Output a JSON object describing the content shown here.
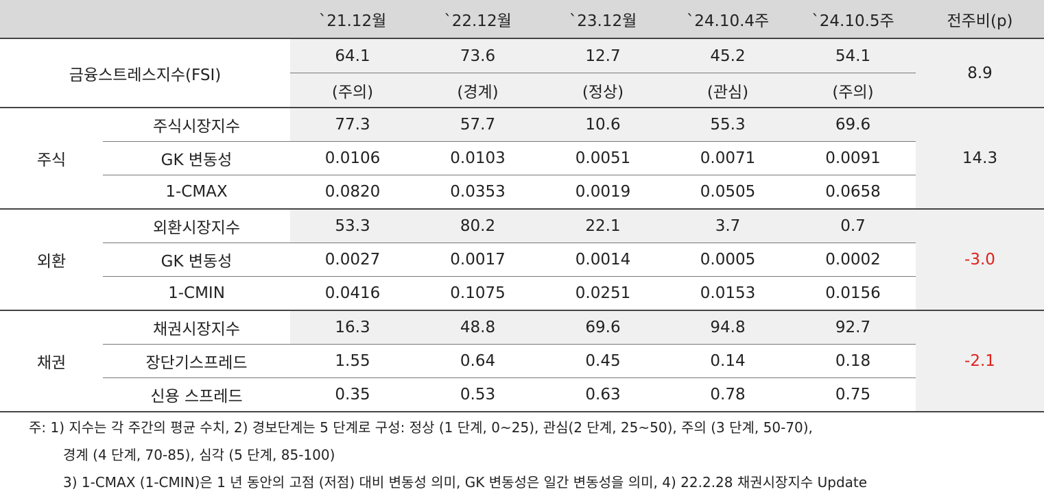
{
  "header": [
    "`21.12월",
    "`22.12월",
    "`23.12월",
    "`24.10.4주",
    "`24.10.5주",
    "전주비(p)"
  ],
  "fsi": {
    "label": "금융스트레스지수(FSI)",
    "values": [
      "64.1",
      "73.6",
      "12.7",
      "45.2",
      "54.1"
    ],
    "levels": [
      "(주의)",
      "(경계)",
      "(정상)",
      "(관심)",
      "(주의)"
    ],
    "change": "8.9"
  },
  "groups": [
    {
      "name": "주식",
      "change": "14.3",
      "rows": [
        {
          "label": "주식시장지수",
          "values": [
            "77.3",
            "57.7",
            "10.6",
            "55.3",
            "69.6"
          ]
        },
        {
          "label": "GK 변동성",
          "values": [
            "0.0106",
            "0.0103",
            "0.0051",
            "0.0071",
            "0.0091"
          ]
        },
        {
          "label": "1-CMAX",
          "values": [
            "0.0820",
            "0.0353",
            "0.0019",
            "0.0505",
            "0.0658"
          ]
        }
      ]
    },
    {
      "name": "외환",
      "change": "-3.0",
      "rows": [
        {
          "label": "외환시장지수",
          "values": [
            "53.3",
            "80.2",
            "22.1",
            "3.7",
            "0.7"
          ]
        },
        {
          "label": "GK 변동성",
          "values": [
            "0.0027",
            "0.0017",
            "0.0014",
            "0.0005",
            "0.0002"
          ]
        },
        {
          "label": "1-CMIN",
          "values": [
            "0.0416",
            "0.1075",
            "0.0251",
            "0.0153",
            "0.0156"
          ]
        }
      ]
    },
    {
      "name": "채권",
      "change": "-2.1",
      "rows": [
        {
          "label": "채권시장지수",
          "values": [
            "16.3",
            "48.8",
            "69.6",
            "94.8",
            "92.7"
          ]
        },
        {
          "label": "장단기스프레드",
          "values": [
            "1.55",
            "0.64",
            "0.45",
            "0.14",
            "0.18"
          ]
        },
        {
          "label": "신용 스프레드",
          "values": [
            "0.35",
            "0.53",
            "0.63",
            "0.78",
            "0.75"
          ]
        }
      ]
    }
  ],
  "notes": [
    "주: 1) 지수는 각 주간의 평균 수치, 2) 경보단계는 5 단계로 구성: 정상 (1 단계, 0~25), 관심(2 단계, 25~50), 주의 (3 단계, 50-70),",
    "경계 (4 단계, 70-85), 심각 (5 단계, 85-100)",
    "3) 1-CMAX (1-CMIN)은 1 년 동안의 고점 (저점) 대비 변동성 의미, GK 변동성은 일간 변동성을 의미, 4) 22.2.28 채권시장지수 Update"
  ]
}
